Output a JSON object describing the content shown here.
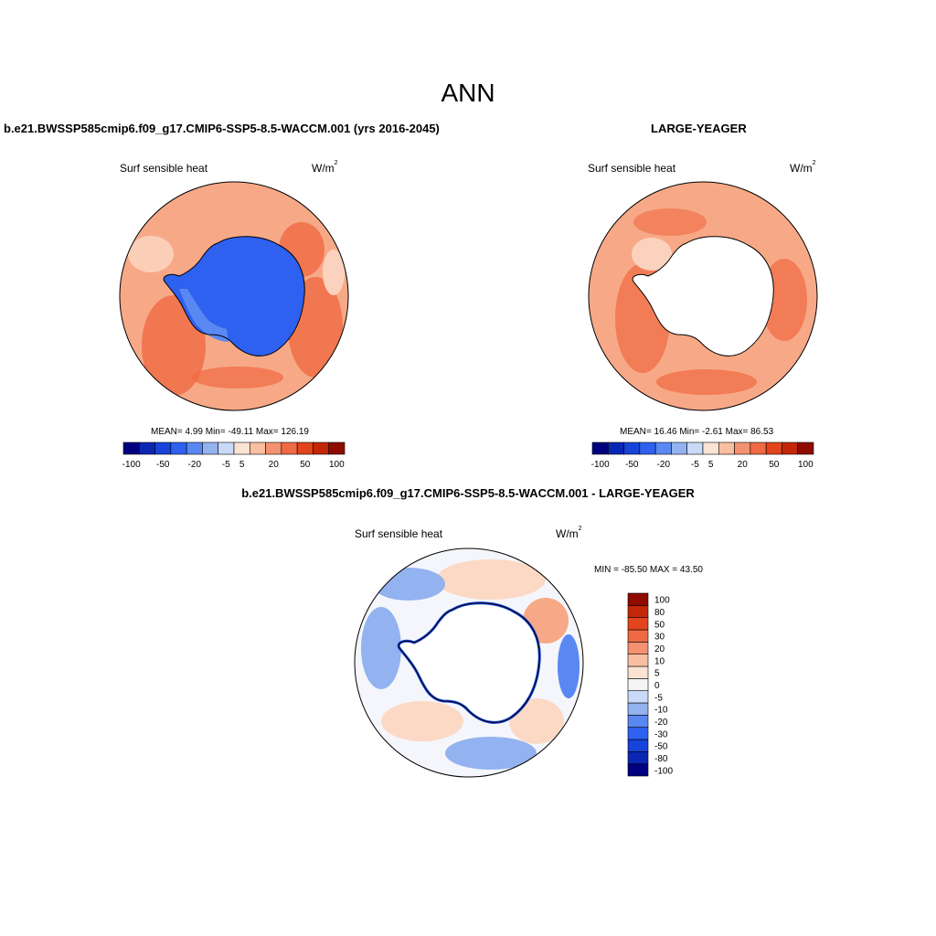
{
  "title": "ANN",
  "panels": [
    {
      "id": "model",
      "title": "b.e21.BWSSP585cmip6.f09_g17.CMIP6-SSP5-8.5-WACCM.001 (yrs 2016-2045)",
      "variable": "Surf sensible heat",
      "units_base": "W/m",
      "units_exp": "2",
      "stats": "MEAN=   4.99  Min= -49.11  Max= 126.19"
    },
    {
      "id": "obs",
      "title": "LARGE-YEAGER",
      "variable": "Surf sensible heat",
      "units_base": "W/m",
      "units_exp": "2",
      "stats": "MEAN=  16.46  Min=  -2.61  Max=  86.53"
    },
    {
      "id": "diff",
      "title": "b.e21.BWSSP585cmip6.f09_g17.CMIP6-SSP5-8.5-WACCM.001 - LARGE-YEAGER",
      "variable": "Surf sensible heat",
      "units_base": "W/m",
      "units_exp": "2",
      "stats": "MIN = -85.50 MAX =  43.50"
    }
  ],
  "colorbar": {
    "colors": [
      "#000080",
      "#0a27b4",
      "#1643d9",
      "#2e61f0",
      "#5a88f2",
      "#93b2f0",
      "#c8daf7",
      "#fbe3d4",
      "#f9bfa1",
      "#f49170",
      "#ef6a42",
      "#e2441b",
      "#c42708",
      "#8e0b00"
    ],
    "horizontal_labels": [
      "-100",
      "-50",
      "-20",
      "-5",
      "5",
      "20",
      "50",
      "100"
    ],
    "vertical_colors": [
      "#000080",
      "#0a27b4",
      "#1643d9",
      "#2e61f0",
      "#5a88f2",
      "#93b2f0",
      "#c8daf7",
      "#f5f5f5",
      "#fbe3d4",
      "#f9bfa1",
      "#f49170",
      "#ef6a42",
      "#e2441b",
      "#c42708",
      "#8e0b00"
    ],
    "vertical_labels": [
      "-100",
      "-80",
      "-50",
      "-30",
      "-20",
      "-10",
      "-5",
      "0",
      "5",
      "10",
      "20",
      "30",
      "50",
      "80",
      "100"
    ]
  },
  "map_colors": {
    "ocean_warm": "#f7a987",
    "ocean_hot": "#ef6a42",
    "ocean_pale": "#fbd2bd",
    "ice_blue": "#2e61f0",
    "ice_light": "#5a88f2",
    "land_white": "#ffffff",
    "diff_base": "#f4f6fb",
    "diff_blue": "#93b2f0",
    "diff_bluedark": "#5a88f2",
    "diff_pink": "#fbd9c5"
  }
}
